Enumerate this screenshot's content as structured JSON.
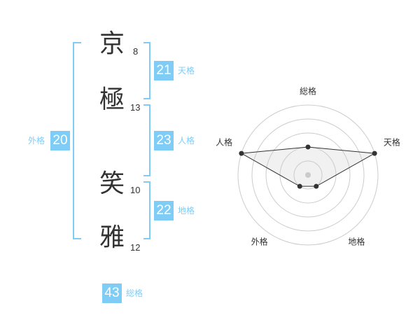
{
  "name": [
    {
      "char": "京",
      "strokes": "8"
    },
    {
      "char": "極",
      "strokes": "13"
    },
    {
      "char": "笑",
      "strokes": "10"
    },
    {
      "char": "雅",
      "strokes": "12"
    }
  ],
  "fortunes": {
    "tenkaku": {
      "label": "天格",
      "value": "21"
    },
    "jinkaku": {
      "label": "人格",
      "value": "23"
    },
    "chikaku": {
      "label": "地格",
      "value": "22"
    },
    "gaikaku": {
      "label": "外格",
      "value": "20"
    },
    "soukaku": {
      "label": "総格",
      "value": "43"
    }
  },
  "accent_color": "#7fcdf7",
  "chart_data": {
    "type": "radar",
    "axes": [
      "総格",
      "天格",
      "地格",
      "外格",
      "人格"
    ],
    "values": [
      2,
      5,
      1,
      1,
      5
    ],
    "range": [
      0,
      5
    ],
    "rings": 5
  }
}
